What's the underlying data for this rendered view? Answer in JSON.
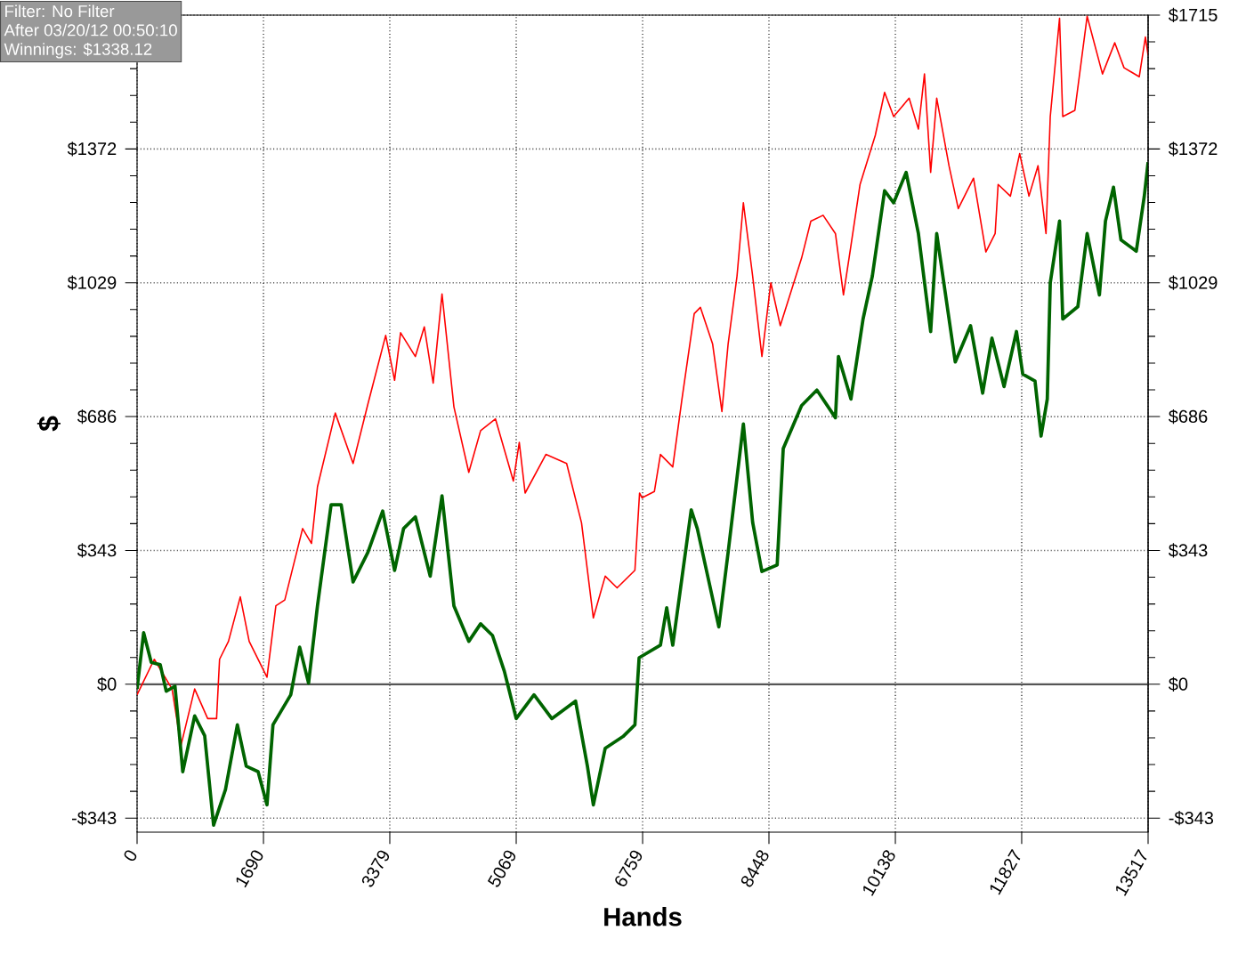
{
  "chart_data": {
    "type": "line",
    "xlabel": "Hands",
    "ylabel": "$",
    "annotations": [
      "Filter: No Filter",
      "After 03/20/12 00:50:10",
      "Winnings: $1338.12"
    ],
    "xlim": [
      0,
      13517
    ],
    "xticks": [
      0,
      1690,
      3379,
      5069,
      6759,
      8448,
      10138,
      11827,
      13517
    ],
    "ylim": [
      -379,
      1715
    ],
    "yticks": [
      {
        "value": -343,
        "label": "-$343"
      },
      {
        "value": 0,
        "label": "$0"
      },
      {
        "value": 343,
        "label": "$343"
      },
      {
        "value": 686,
        "label": "$686"
      },
      {
        "value": 1029,
        "label": "$1029"
      },
      {
        "value": 1372,
        "label": "$1372"
      },
      {
        "value": 1715,
        "label": null
      }
    ],
    "y2lim": [
      -379,
      1715
    ],
    "y2ticks": [
      {
        "value": -343,
        "label": "-$343"
      },
      {
        "value": 0,
        "label": "$0"
      },
      {
        "value": 343,
        "label": "$343"
      },
      {
        "value": 686,
        "label": "$686"
      },
      {
        "value": 1029,
        "label": "$1029"
      },
      {
        "value": 1372,
        "label": "$1372"
      },
      {
        "value": 1715,
        "label": "$1715"
      }
    ],
    "grid": true,
    "ref_lines": [
      {
        "axis": "y",
        "value": 0,
        "color": "#555555"
      }
    ],
    "series": [
      {
        "color": "#ff0000",
        "x": [
          0,
          230,
          468,
          587,
          770,
          944,
          1063,
          1103,
          1222,
          1380,
          1499,
          1737,
          1856,
          1975,
          2213,
          2332,
          2412,
          2650,
          2888,
          3086,
          3324,
          3443,
          3523,
          3721,
          3840,
          3959,
          4077,
          4236,
          4435,
          4593,
          4792,
          5031,
          5110,
          5188,
          5466,
          5743,
          5942,
          6100,
          6259,
          6418,
          6656,
          6718,
          6752,
          6916,
          6997,
          7162,
          7285,
          7449,
          7531,
          7695,
          7819,
          7902,
          8021,
          8106,
          8230,
          8354,
          8473,
          8599,
          8884,
          9008,
          9172,
          9337,
          9444,
          9544,
          9666,
          9870,
          9994,
          10115,
          10322,
          10446,
          10527,
          10610,
          10691,
          10855,
          10979,
          11183,
          11348,
          11472,
          11512,
          11676,
          11800,
          11924,
          12045,
          12152,
          12209,
          12333,
          12376,
          12538,
          12702,
          12907,
          13071,
          13195,
          13399,
          13481,
          13517
        ],
        "values": [
          -27,
          64,
          -12,
          -157,
          -12,
          -88,
          -88,
          64,
          110,
          224,
          110,
          18,
          201,
          216,
          399,
          361,
          506,
          695,
          566,
          718,
          894,
          779,
          901,
          840,
          916,
          772,
          1000,
          711,
          543,
          650,
          680,
          521,
          620,
          490,
          589,
          566,
          414,
          170,
          277,
          247,
          292,
          490,
          478,
          494,
          589,
          557,
          731,
          950,
          966,
          872,
          699,
          872,
          1046,
          1234,
          1046,
          840,
          1029,
          919,
          1092,
          1187,
          1202,
          1155,
          998,
          1124,
          1281,
          1407,
          1517,
          1455,
          1502,
          1423,
          1564,
          1312,
          1502,
          1329,
          1219,
          1297,
          1108,
          1155,
          1281,
          1251,
          1360,
          1251,
          1329,
          1155,
          1455,
          1707,
          1455,
          1471,
          1712,
          1564,
          1644,
          1580,
          1557,
          1659,
          1612
        ]
      },
      {
        "color": "#006400",
        "x": [
          0,
          88,
          190,
          310,
          390,
          507,
          611,
          770,
          904,
          1023,
          1182,
          1341,
          1460,
          1618,
          1737,
          1817,
          2055,
          2174,
          2293,
          2412,
          2594,
          2729,
          2888,
          3086,
          3284,
          3443,
          3563,
          3721,
          3919,
          4077,
          4236,
          4435,
          4593,
          4752,
          4911,
          5069,
          5307,
          5545,
          5862,
          6021,
          6100,
          6259,
          6497,
          6656,
          6712,
          6997,
          7081,
          7162,
          7409,
          7490,
          7778,
          7902,
          8106,
          8230,
          8354,
          8558,
          8639,
          8884,
          9089,
          9337,
          9377,
          9544,
          9706,
          9830,
          9994,
          10115,
          10282,
          10446,
          10610,
          10691,
          10939,
          11143,
          11305,
          11429,
          11591,
          11757,
          11841,
          12005,
          12086,
          12169,
          12209,
          12333,
          12376,
          12578,
          12702,
          12866,
          12947,
          13054,
          13154,
          13359,
          13466,
          13517
        ],
        "values": [
          -12,
          132,
          56,
          50,
          -18,
          -5,
          -224,
          -81,
          -132,
          -361,
          -270,
          -104,
          -210,
          -224,
          -309,
          -104,
          -27,
          95,
          3,
          201,
          460,
          460,
          262,
          338,
          444,
          292,
          399,
          429,
          277,
          483,
          201,
          110,
          155,
          125,
          33,
          -88,
          -27,
          -88,
          -43,
          -210,
          -309,
          -164,
          -134,
          -104,
          68,
          100,
          196,
          100,
          447,
          399,
          147,
          338,
          667,
          415,
          289,
          306,
          604,
          714,
          754,
          683,
          840,
          731,
          936,
          1046,
          1265,
          1234,
          1312,
          1155,
          904,
          1155,
          826,
          919,
          746,
          887,
          763,
          904,
          795,
          777,
          636,
          731,
          1029,
          1187,
          936,
          968,
          1155,
          998,
          1187,
          1274,
          1139,
          1110,
          1251,
          1338
        ]
      }
    ]
  }
}
